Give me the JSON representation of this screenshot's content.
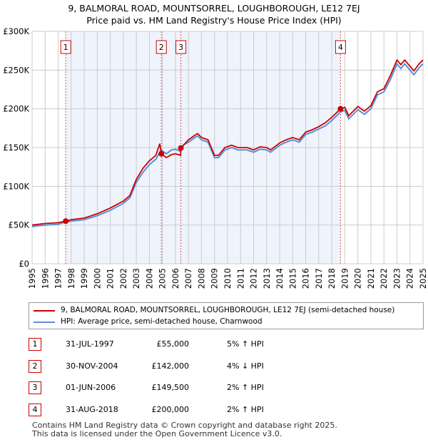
{
  "title_line1": "9, BALMORAL ROAD, MOUNTSORREL, LOUGHBOROUGH, LE12 7EJ",
  "title_line2": "Price paid vs. HM Land Registry's House Price Index (HPI)",
  "colors": {
    "property": "#cc0000",
    "hpi": "#5b8fd6",
    "shade": "#eef3fc",
    "grid": "#cccccc"
  },
  "chart_data": {
    "type": "line",
    "xlim": [
      1995,
      2025
    ],
    "ylim": [
      0,
      300000
    ],
    "yticks": [
      {
        "v": 0,
        "label": "£0"
      },
      {
        "v": 50000,
        "label": "£50K"
      },
      {
        "v": 100000,
        "label": "£100K"
      },
      {
        "v": 150000,
        "label": "£150K"
      },
      {
        "v": 200000,
        "label": "£200K"
      },
      {
        "v": 250000,
        "label": "£250K"
      },
      {
        "v": 300000,
        "label": "£300K"
      }
    ],
    "xticks": [
      "1995",
      "1996",
      "1997",
      "1998",
      "1999",
      "2000",
      "2001",
      "2002",
      "2003",
      "2004",
      "2005",
      "2006",
      "2007",
      "2008",
      "2009",
      "2010",
      "2011",
      "2012",
      "2013",
      "2014",
      "2015",
      "2016",
      "2017",
      "2018",
      "2019",
      "2020",
      "2021",
      "2022",
      "2023",
      "2024",
      "2025"
    ],
    "shaded_range": [
      1997.58,
      2018.67
    ],
    "series": [
      {
        "name": "9, BALMORAL ROAD, MOUNTSORREL, LOUGHBOROUGH, LE12 7EJ (semi-detached house)",
        "color": "#cc0000",
        "points": [
          [
            1995,
            50
          ],
          [
            1996,
            52
          ],
          [
            1997,
            53
          ],
          [
            1997.58,
            55
          ],
          [
            1998,
            57
          ],
          [
            1999,
            59
          ],
          [
            2000,
            64.5
          ],
          [
            2001,
            72
          ],
          [
            2002,
            81
          ],
          [
            2002.5,
            88
          ],
          [
            2003,
            109
          ],
          [
            2003.5,
            123
          ],
          [
            2004,
            133
          ],
          [
            2004.5,
            140
          ],
          [
            2004.8,
            155
          ],
          [
            2004.92,
            142
          ],
          [
            2005.3,
            137
          ],
          [
            2005.7,
            141
          ],
          [
            2006,
            142
          ],
          [
            2006.4,
            140
          ],
          [
            2006.42,
            149.5
          ],
          [
            2007,
            160
          ],
          [
            2007.5,
            166
          ],
          [
            2007.7,
            168
          ],
          [
            2008,
            163
          ],
          [
            2008.5,
            160
          ],
          [
            2009,
            140
          ],
          [
            2009.3,
            140
          ],
          [
            2009.8,
            150
          ],
          [
            2010.3,
            153
          ],
          [
            2010.8,
            150
          ],
          [
            2011.5,
            150
          ],
          [
            2012,
            147
          ],
          [
            2012.5,
            151
          ],
          [
            2013,
            150
          ],
          [
            2013.3,
            147
          ],
          [
            2014,
            156
          ],
          [
            2014.5,
            160
          ],
          [
            2015,
            163
          ],
          [
            2015.5,
            160
          ],
          [
            2016,
            170
          ],
          [
            2016.5,
            173
          ],
          [
            2017,
            177
          ],
          [
            2017.5,
            182
          ],
          [
            2018,
            189
          ],
          [
            2018.67,
            200
          ],
          [
            2019,
            202
          ],
          [
            2019.3,
            191
          ],
          [
            2020,
            203
          ],
          [
            2020.5,
            197
          ],
          [
            2021,
            204
          ],
          [
            2021.5,
            222
          ],
          [
            2022,
            226
          ],
          [
            2022.5,
            243
          ],
          [
            2023,
            263
          ],
          [
            2023.3,
            257
          ],
          [
            2023.6,
            263
          ],
          [
            2024,
            255
          ],
          [
            2024.3,
            249
          ],
          [
            2024.7,
            258
          ],
          [
            2025,
            263
          ]
        ]
      },
      {
        "name": "HPI: Average price, semi-detached house, Charnwood",
        "color": "#5b8fd6",
        "points": [
          [
            1995,
            48
          ],
          [
            1996,
            50
          ],
          [
            1997,
            51
          ],
          [
            1997.6,
            54
          ],
          [
            1998,
            55
          ],
          [
            1999,
            57
          ],
          [
            2000,
            62
          ],
          [
            2001,
            69
          ],
          [
            2002,
            78
          ],
          [
            2002.5,
            85
          ],
          [
            2003,
            105
          ],
          [
            2003.5,
            118
          ],
          [
            2004,
            128
          ],
          [
            2004.5,
            135
          ],
          [
            2004.9,
            147
          ],
          [
            2005.3,
            142
          ],
          [
            2005.7,
            147
          ],
          [
            2006,
            148
          ],
          [
            2006.4,
            145
          ],
          [
            2006.6,
            153
          ],
          [
            2007,
            157
          ],
          [
            2007.5,
            163
          ],
          [
            2007.7,
            165
          ],
          [
            2008,
            160
          ],
          [
            2008.5,
            157
          ],
          [
            2009,
            137
          ],
          [
            2009.3,
            137
          ],
          [
            2009.8,
            147
          ],
          [
            2010.3,
            150
          ],
          [
            2010.8,
            147
          ],
          [
            2011.5,
            147
          ],
          [
            2012,
            144
          ],
          [
            2012.5,
            148
          ],
          [
            2013,
            147
          ],
          [
            2013.3,
            144
          ],
          [
            2014,
            153
          ],
          [
            2014.5,
            157
          ],
          [
            2015,
            160
          ],
          [
            2015.5,
            157
          ],
          [
            2016,
            167
          ],
          [
            2016.5,
            170
          ],
          [
            2017,
            174
          ],
          [
            2017.5,
            178
          ],
          [
            2018,
            185
          ],
          [
            2018.67,
            196
          ],
          [
            2019,
            198
          ],
          [
            2019.3,
            187
          ],
          [
            2020,
            199
          ],
          [
            2020.5,
            193
          ],
          [
            2021,
            200
          ],
          [
            2021.5,
            218
          ],
          [
            2022,
            222
          ],
          [
            2022.5,
            238
          ],
          [
            2023,
            258
          ],
          [
            2023.3,
            252
          ],
          [
            2023.6,
            258
          ],
          [
            2024,
            250
          ],
          [
            2024.3,
            244
          ],
          [
            2024.7,
            253
          ],
          [
            2025,
            258
          ]
        ]
      }
    ],
    "sales": [
      {
        "n": "1",
        "x": 1997.58,
        "y": 55
      },
      {
        "n": "2",
        "x": 2004.92,
        "y": 142
      },
      {
        "n": "3",
        "x": 2006.42,
        "y": 149.5
      },
      {
        "n": "4",
        "x": 2018.67,
        "y": 200
      }
    ],
    "value_unit": "thousands GBP"
  },
  "legend": {
    "property": "9, BALMORAL ROAD, MOUNTSORREL, LOUGHBOROUGH, LE12 7EJ (semi-detached house)",
    "hpi": "HPI: Average price, semi-detached house, Charnwood"
  },
  "transactions": [
    {
      "n": "1",
      "date": "31-JUL-1997",
      "price": "£55,000",
      "hpi": "5% ↑ HPI"
    },
    {
      "n": "2",
      "date": "30-NOV-2004",
      "price": "£142,000",
      "hpi": "4% ↓ HPI"
    },
    {
      "n": "3",
      "date": "01-JUN-2006",
      "price": "£149,500",
      "hpi": "2% ↑ HPI"
    },
    {
      "n": "4",
      "date": "31-AUG-2018",
      "price": "£200,000",
      "hpi": "2% ↑ HPI"
    }
  ],
  "footer1": "Contains HM Land Registry data © Crown copyright and database right 2025.",
  "footer2": "This data is licensed under the Open Government Licence v3.0."
}
